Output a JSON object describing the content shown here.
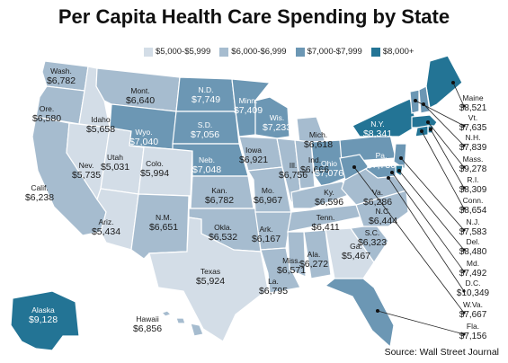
{
  "title": "Per Capita Health Care Spending by State",
  "source": "Source: Wall Street Journal",
  "colors": {
    "tier1": "#d3dde7",
    "tier2": "#a6bccf",
    "tier3": "#6c97b4",
    "tier4": "#237495",
    "border": "#ffffff"
  },
  "legend": [
    {
      "label": "$5,000-$5,999",
      "tier": "tier1"
    },
    {
      "label": "$6,000-$6,999",
      "tier": "tier2"
    },
    {
      "label": "$7,000-$7,999",
      "tier": "tier3"
    },
    {
      "label": "$8,000+",
      "tier": "tier4"
    }
  ],
  "states": [
    {
      "id": "WA",
      "name": "Wash.",
      "value": "$6,782",
      "tier": "tier2"
    },
    {
      "id": "OR",
      "name": "Ore.",
      "value": "$6,580",
      "tier": "tier2"
    },
    {
      "id": "CA",
      "name": "Calif.",
      "value": "$6,238",
      "tier": "tier2"
    },
    {
      "id": "ID",
      "name": "Idaho",
      "value": "$5,658",
      "tier": "tier1"
    },
    {
      "id": "NV",
      "name": "Nev.",
      "value": "$5,735",
      "tier": "tier1"
    },
    {
      "id": "UT",
      "name": "Utah",
      "value": "$5,031",
      "tier": "tier1"
    },
    {
      "id": "AZ",
      "name": "Ariz.",
      "value": "$5,434",
      "tier": "tier1"
    },
    {
      "id": "MT",
      "name": "Mont.",
      "value": "$6,640",
      "tier": "tier2"
    },
    {
      "id": "WY",
      "name": "Wyo.",
      "value": "$7,040",
      "tier": "tier3"
    },
    {
      "id": "CO",
      "name": "Colo.",
      "value": "$5,994",
      "tier": "tier1"
    },
    {
      "id": "NM",
      "name": "N.M.",
      "value": "$6,651",
      "tier": "tier2"
    },
    {
      "id": "ND",
      "name": "N.D.",
      "value": "$7,749",
      "tier": "tier3"
    },
    {
      "id": "SD",
      "name": "S.D.",
      "value": "$7,056",
      "tier": "tier3"
    },
    {
      "id": "NE",
      "name": "Neb.",
      "value": "$7,048",
      "tier": "tier3"
    },
    {
      "id": "KS",
      "name": "Kan.",
      "value": "$6,782",
      "tier": "tier2"
    },
    {
      "id": "OK",
      "name": "Okla.",
      "value": "$6,532",
      "tier": "tier2"
    },
    {
      "id": "TX",
      "name": "Texas",
      "value": "$5,924",
      "tier": "tier1"
    },
    {
      "id": "MN",
      "name": "Minn.",
      "value": "$7,409",
      "tier": "tier3"
    },
    {
      "id": "IA",
      "name": "Iowa",
      "value": "$6,921",
      "tier": "tier2"
    },
    {
      "id": "MO",
      "name": "Mo.",
      "value": "$6,967",
      "tier": "tier2"
    },
    {
      "id": "AR",
      "name": "Ark.",
      "value": "$6,167",
      "tier": "tier2"
    },
    {
      "id": "LA",
      "name": "La.",
      "value": "$6,795",
      "tier": "tier2"
    },
    {
      "id": "WI",
      "name": "Wis.",
      "value": "$7,233",
      "tier": "tier3"
    },
    {
      "id": "IL",
      "name": "Ill.",
      "value": "$6,756",
      "tier": "tier2"
    },
    {
      "id": "MI",
      "name": "Mich.",
      "value": "$6,618",
      "tier": "tier2"
    },
    {
      "id": "IN",
      "name": "Ind.",
      "value": "$6,666",
      "tier": "tier2"
    },
    {
      "id": "OH",
      "name": "Ohio",
      "value": "$7,076",
      "tier": "tier3"
    },
    {
      "id": "KY",
      "name": "Ky.",
      "value": "$6,596",
      "tier": "tier2"
    },
    {
      "id": "TN",
      "name": "Tenn.",
      "value": "$6,411",
      "tier": "tier2"
    },
    {
      "id": "MS",
      "name": "Miss.",
      "value": "$6,571",
      "tier": "tier2"
    },
    {
      "id": "AL",
      "name": "Ala.",
      "value": "$6,272",
      "tier": "tier2"
    },
    {
      "id": "GA",
      "name": "Ga.",
      "value": "$5,467",
      "tier": "tier1"
    },
    {
      "id": "SC",
      "name": "S.C.",
      "value": "$6,323",
      "tier": "tier2"
    },
    {
      "id": "NC",
      "name": "N.C.",
      "value": "$6,444",
      "tier": "tier2"
    },
    {
      "id": "VA",
      "name": "Va.",
      "value": "$6,286",
      "tier": "tier2"
    },
    {
      "id": "PA",
      "name": "Pa.",
      "value": "$7,730",
      "tier": "tier3"
    },
    {
      "id": "NY",
      "name": "N.Y.",
      "value": "$8,341",
      "tier": "tier4"
    },
    {
      "id": "AK",
      "name": "Alaska",
      "value": "$9,128",
      "tier": "tier4"
    },
    {
      "id": "HI",
      "name": "Hawaii",
      "value": "$6,856",
      "tier": "tier2"
    },
    {
      "id": "ME",
      "name": "Maine",
      "value": "$8,521",
      "tier": "tier4"
    },
    {
      "id": "VT",
      "name": "Vt.",
      "value": "$7,635",
      "tier": "tier3"
    },
    {
      "id": "NH",
      "name": "N.H.",
      "value": "$7,839",
      "tier": "tier3"
    },
    {
      "id": "MA",
      "name": "Mass.",
      "value": "$9,278",
      "tier": "tier4"
    },
    {
      "id": "RI",
      "name": "R.I.",
      "value": "$8,309",
      "tier": "tier4"
    },
    {
      "id": "CT",
      "name": "Conn.",
      "value": "$8,654",
      "tier": "tier4"
    },
    {
      "id": "NJ",
      "name": "N.J.",
      "value": "$7,583",
      "tier": "tier3"
    },
    {
      "id": "DE",
      "name": "Del.",
      "value": "$8,480",
      "tier": "tier4"
    },
    {
      "id": "MD",
      "name": "Md.",
      "value": "$7,492",
      "tier": "tier3"
    },
    {
      "id": "DC",
      "name": "D.C.",
      "value": "$10,349",
      "tier": "tier4"
    },
    {
      "id": "WV",
      "name": "W.Va.",
      "value": "$7,667",
      "tier": "tier3"
    },
    {
      "id": "FL",
      "name": "Fla.",
      "value": "$7,156",
      "tier": "tier3"
    }
  ]
}
